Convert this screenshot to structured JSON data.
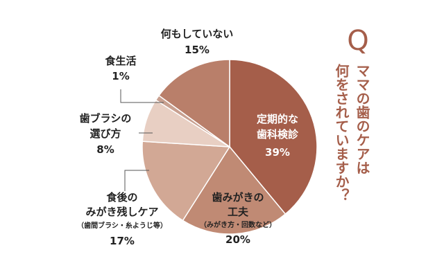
{
  "chart_data": {
    "type": "pie",
    "slices": [
      {
        "label": "定期的な歯科検診",
        "value": 39,
        "value_label": "39%",
        "color": "#a55e4a"
      },
      {
        "label": "歯みがきの工夫",
        "sublabel": "（みがき方・回数など）",
        "value": 20,
        "value_label": "20%",
        "color": "#c08a74"
      },
      {
        "label": "食後のみがき残しケア",
        "sublabel": "（歯間ブラシ・糸ようじ等）",
        "value": 17,
        "value_label": "17%",
        "color": "#d2a895"
      },
      {
        "label": "歯ブラシの選び方",
        "value": 8,
        "value_label": "8%",
        "color": "#e8cfc3"
      },
      {
        "label": "食生活",
        "value": 1,
        "value_label": "1%",
        "color": "#c8a090"
      },
      {
        "label": "何もしていない",
        "value": 15,
        "value_label": "15%",
        "color": "#b97f6a"
      }
    ]
  },
  "question": {
    "mark": "Q",
    "line1": "ママの歯のケアは",
    "line2": "何をされていますか？",
    "color": "#a55e4a"
  },
  "labels": {
    "dental_checkup": {
      "line1": "定期的な",
      "line2": "歯科検診",
      "value": "39%"
    },
    "brushing": {
      "line1": "歯みがきの",
      "line2": "工夫",
      "line3": "（みがき方・回数など）",
      "value": "20%"
    },
    "after_meal": {
      "line1": "食後の",
      "line2": "みがき残しケア",
      "line3": "（歯間ブラシ・糸ようじ等）",
      "value": "17%"
    },
    "toothbrush": {
      "line1": "歯ブラシの",
      "line2": "選び方",
      "value": "8%"
    },
    "diet": {
      "line1": "食生活",
      "value": "1%"
    },
    "nothing": {
      "line1": "何もしていない",
      "value": "15%"
    }
  }
}
